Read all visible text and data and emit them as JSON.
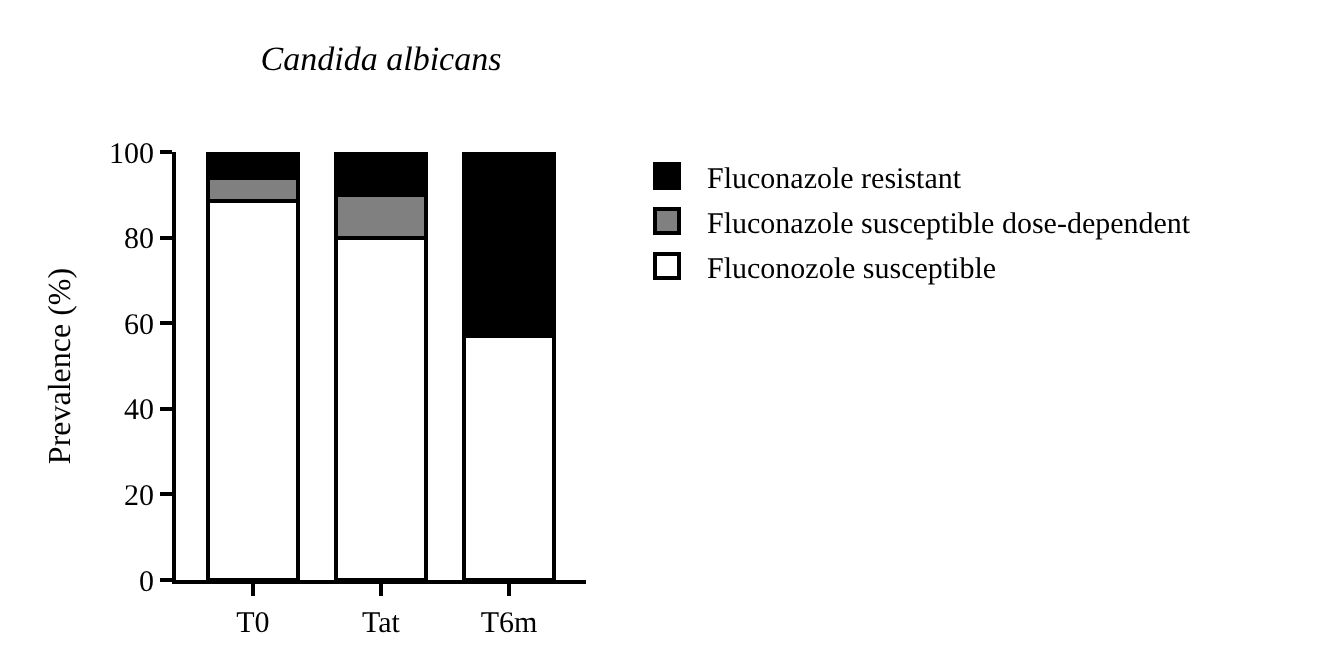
{
  "chart_data": {
    "type": "bar",
    "title": "Candida albicans",
    "ylabel": "Prevalence (%)",
    "categories": [
      "T0",
      "Tat",
      "T6m"
    ],
    "stacked": true,
    "series": [
      {
        "name": "Fluconozole susceptible",
        "color": "#ffffff",
        "values": [
          88.5,
          80,
          57
        ]
      },
      {
        "name": "Fluconazole susceptible dose-dependent",
        "color": "#808080",
        "values": [
          5.5,
          10,
          0
        ]
      },
      {
        "name": "Fluconazole resistant",
        "color": "#000000",
        "values": [
          6,
          10,
          43
        ]
      }
    ],
    "ylim": [
      0,
      100
    ],
    "yticks": [
      0,
      20,
      40,
      60,
      80,
      100
    ],
    "legend": "top right"
  }
}
